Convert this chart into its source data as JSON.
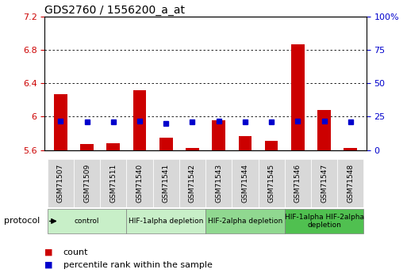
{
  "title": "GDS2760 / 1556200_a_at",
  "samples": [
    "GSM71507",
    "GSM71509",
    "GSM71511",
    "GSM71540",
    "GSM71541",
    "GSM71542",
    "GSM71543",
    "GSM71544",
    "GSM71545",
    "GSM71546",
    "GSM71547",
    "GSM71548"
  ],
  "count_values": [
    6.27,
    5.67,
    5.68,
    6.32,
    5.75,
    5.63,
    5.96,
    5.77,
    5.71,
    6.87,
    6.08,
    5.63
  ],
  "percentile_values": [
    22,
    21,
    21,
    22,
    20,
    21,
    22,
    21,
    21,
    22,
    22,
    21
  ],
  "ylim_left": [
    5.6,
    7.2
  ],
  "ylim_right": [
    0,
    100
  ],
  "yticks_left": [
    5.6,
    6.0,
    6.4,
    6.8,
    7.2
  ],
  "yticks_right": [
    0,
    25,
    50,
    75,
    100
  ],
  "ytick_labels_left": [
    "5.6",
    "6",
    "6.4",
    "6.8",
    "7.2"
  ],
  "ytick_labels_right": [
    "0",
    "25",
    "50",
    "75",
    "100%"
  ],
  "bar_bottom": 5.6,
  "bar_color": "#cc0000",
  "dot_color": "#0000cc",
  "bar_width": 0.5,
  "tick_color_left": "#cc0000",
  "tick_color_right": "#0000cc",
  "protocol_groups": [
    {
      "label": "control",
      "start": 0,
      "end": 2,
      "color": "#c8efc8"
    },
    {
      "label": "HIF-1alpha depletion",
      "start": 3,
      "end": 5,
      "color": "#c8efc8"
    },
    {
      "label": "HIF-2alpha depletion",
      "start": 6,
      "end": 8,
      "color": "#90d890"
    },
    {
      "label": "HIF-1alpha HIF-2alpha\ndepletion",
      "start": 9,
      "end": 11,
      "color": "#50c050"
    }
  ],
  "xtick_bg_color": "#d8d8d8",
  "legend_count_label": "count",
  "legend_percentile_label": "percentile rank within the sample",
  "xlabel_protocol": "protocol"
}
